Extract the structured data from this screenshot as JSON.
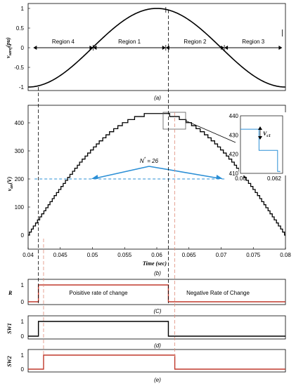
{
  "chart_data": [
    {
      "id": "a",
      "type": "line",
      "caption": "(a)",
      "ylabel": "v_saref (pu)",
      "ylabel_main": "v",
      "ylabel_sub": "saref",
      "ylabel_unit": "(pu)",
      "ylim": [
        -1,
        1
      ],
      "yticks": [
        "1",
        "0.5",
        "0",
        "-0.5",
        "-1"
      ],
      "x_range": [
        0.04,
        0.08
      ],
      "series": [
        {
          "waveform": "sine",
          "amplitude": 1,
          "peak_at": 0.06,
          "period": 0.04
        }
      ],
      "regions": [
        {
          "label": "Region 4",
          "from": 0.0408,
          "to": 0.0501
        },
        {
          "label": "Region 1",
          "from": 0.0501,
          "to": 0.0614
        },
        {
          "label": "Region 2",
          "from": 0.0614,
          "to": 0.0705
        },
        {
          "label": "Region 3",
          "from": 0.0705,
          "to": 0.0795
        }
      ]
    },
    {
      "id": "b",
      "type": "line",
      "caption": "(b)",
      "ylabel": "v_an (V)",
      "ylabel_main": "v",
      "ylabel_sub": "an",
      "ylabel_unit": "(V)",
      "xlabel": "Time (sec)",
      "ylim": [
        0,
        450
      ],
      "xlim": [
        0.04,
        0.08
      ],
      "yticks": [
        "400",
        "300",
        "200",
        "100",
        "0"
      ],
      "xticks": [
        "0.04",
        "0.045",
        "0.05",
        "0.055",
        "0.06",
        "0.065",
        "0.07",
        "0.075",
        "0.08"
      ],
      "series": [
        {
          "waveform": "staircase sine",
          "peak_value": 433,
          "peak_at": 0.06,
          "zero_at": [
            0.04,
            0.08
          ],
          "step": 10.83,
          "levels": 40
        }
      ],
      "reference_line": {
        "value": 200,
        "from": 0.041,
        "to": 0.07
      },
      "annotation": "N* = 26",
      "annotation_main": "N",
      "annotation_rest": " = 26",
      "inset": {
        "ylim": [
          410,
          440
        ],
        "xlim": [
          0.06,
          0.0625
        ],
        "yticks": [
          "440",
          "430",
          "420",
          "410"
        ],
        "xticks": [
          "0.06",
          "0.062"
        ],
        "label": "V_c1",
        "label_main": "V",
        "label_sub": "c1",
        "steps": [
          {
            "x": 0.06,
            "y": 433
          },
          {
            "x": 0.0611,
            "y": 422
          },
          {
            "x": 0.0622,
            "y": 411
          }
        ]
      }
    },
    {
      "id": "c",
      "type": "line",
      "caption": "(C)",
      "ylabel": "R",
      "ylim": [
        0,
        1
      ],
      "yticks": [
        "1",
        "0"
      ],
      "series": [
        {
          "name": "R",
          "color": "#c0392b",
          "points": [
            [
              0.04,
              0
            ],
            [
              0.0416,
              0
            ],
            [
              0.0416,
              1
            ],
            [
              0.0618,
              1
            ],
            [
              0.0618,
              0
            ],
            [
              0.08,
              0
            ]
          ]
        }
      ],
      "labels": [
        "Poisitive rate of change",
        "Negative Rate of Change"
      ]
    },
    {
      "id": "d",
      "type": "line",
      "caption": "(d)",
      "ylabel": "SW1",
      "ylim": [
        0,
        1
      ],
      "yticks": [
        "1",
        "0"
      ],
      "series": [
        {
          "name": "SW1",
          "color": "#000000",
          "points": [
            [
              0.04,
              0
            ],
            [
              0.0416,
              0
            ],
            [
              0.0416,
              1
            ],
            [
              0.0618,
              1
            ],
            [
              0.0618,
              0
            ],
            [
              0.08,
              0
            ]
          ]
        }
      ]
    },
    {
      "id": "e",
      "type": "line",
      "caption": "(e)",
      "ylabel": "SW2",
      "ylim": [
        0,
        1
      ],
      "yticks": [
        "1",
        "0"
      ],
      "series": [
        {
          "name": "SW2",
          "color": "#c0392b",
          "points": [
            [
              0.04,
              0
            ],
            [
              0.0424,
              0
            ],
            [
              0.0424,
              1
            ],
            [
              0.0628,
              1
            ],
            [
              0.0628,
              0
            ],
            [
              0.08,
              0
            ]
          ]
        }
      ]
    }
  ]
}
